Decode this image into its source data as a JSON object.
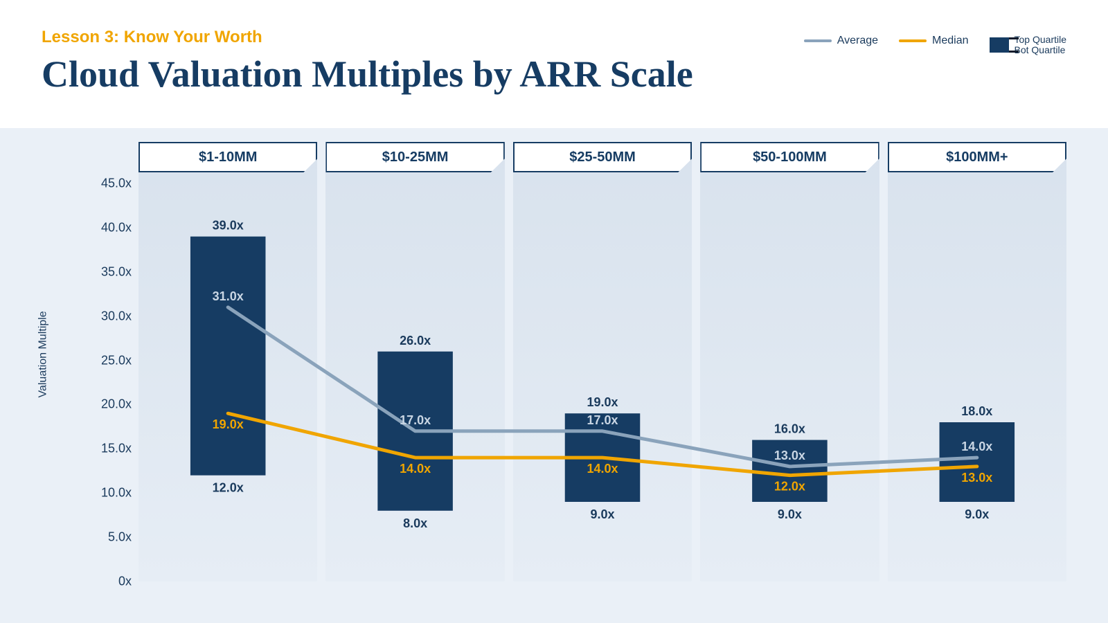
{
  "subtitle": "Lesson 3: Know Your Worth",
  "title": "Cloud Valuation Multiples by ARR Scale",
  "colors": {
    "subtitle": "#f0a500",
    "title": "#163c63",
    "navy": "#163c63",
    "bar_fill": "#163c63",
    "average_line": "#8aa3bb",
    "median_line": "#f0a500",
    "panel_bg_top": "#d8e2ed",
    "panel_bg_bottom": "#e6edf5",
    "chart_bg": "#eaf0f7",
    "text_dark": "#1a3a5c",
    "text_on_bar_light": "#c9d6e4",
    "median_label": "#f0a500"
  },
  "legend": {
    "average": "Average",
    "median": "Median",
    "top": "Top Quartile",
    "bot": "Bot Quartile"
  },
  "chart": {
    "type": "bar+line",
    "ylabel": "Valuation Multiple",
    "y_min": 0,
    "y_max": 45,
    "y_tick_step": 5,
    "y_tick_suffix": "x",
    "y_tick_format_decimal": 1,
    "categories": [
      "$1-10MM",
      "$10-25MM",
      "$25-50MM",
      "$50-100MM",
      "$100MM+"
    ],
    "bars": {
      "top": [
        39.0,
        26.0,
        19.0,
        16.0,
        18.0
      ],
      "bottom": [
        12.0,
        8.0,
        9.0,
        9.0,
        9.0
      ],
      "width_frac": 0.42
    },
    "lines": {
      "average": [
        31.0,
        17.0,
        17.0,
        13.0,
        14.0
      ],
      "median": [
        19.0,
        14.0,
        14.0,
        12.0,
        13.0
      ]
    },
    "line_width": 5,
    "label_suffix": "x",
    "label_decimal": 1,
    "label_fontsize": 18
  }
}
